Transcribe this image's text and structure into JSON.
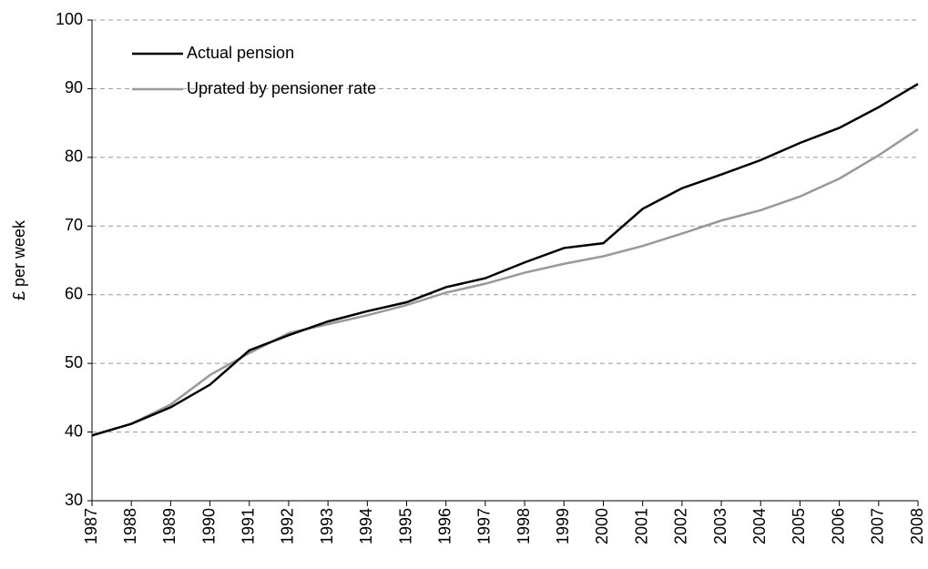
{
  "chart_data": {
    "type": "line",
    "y_label": "£ per week",
    "x": [
      1987,
      1988,
      1989,
      1990,
      1991,
      1992,
      1993,
      1994,
      1995,
      1996,
      1997,
      1998,
      1999,
      2000,
      2001,
      2002,
      2003,
      2004,
      2005,
      2006,
      2007,
      2008
    ],
    "series": [
      {
        "name": "Actual pension",
        "color": "#000000",
        "values": [
          39.5,
          41.2,
          43.6,
          46.9,
          51.9,
          54.1,
          56.1,
          57.6,
          58.9,
          61.1,
          62.4,
          64.7,
          66.8,
          67.5,
          72.5,
          75.5,
          77.5,
          79.6,
          82.1,
          84.3,
          87.3,
          90.7
        ]
      },
      {
        "name": "Uprated by pensioner rate",
        "color": "#999999",
        "values": [
          39.5,
          41.2,
          44.0,
          48.3,
          51.5,
          54.4,
          55.7,
          57.0,
          58.5,
          60.3,
          61.6,
          63.2,
          64.5,
          65.6,
          67.1,
          68.9,
          70.8,
          72.3,
          74.3,
          76.9,
          80.3,
          84.1
        ]
      }
    ],
    "xlim": [
      1987,
      2008
    ],
    "xticks": [
      1987,
      1988,
      1989,
      1990,
      1991,
      1992,
      1993,
      1994,
      1995,
      1996,
      1997,
      1998,
      1999,
      2000,
      2001,
      2002,
      2003,
      2004,
      2005,
      2006,
      2007,
      2008
    ],
    "ylim": [
      30,
      100
    ],
    "yticks": [
      30,
      40,
      50,
      60,
      70,
      80,
      90,
      100
    ],
    "grid": true,
    "legend": "top-left"
  }
}
